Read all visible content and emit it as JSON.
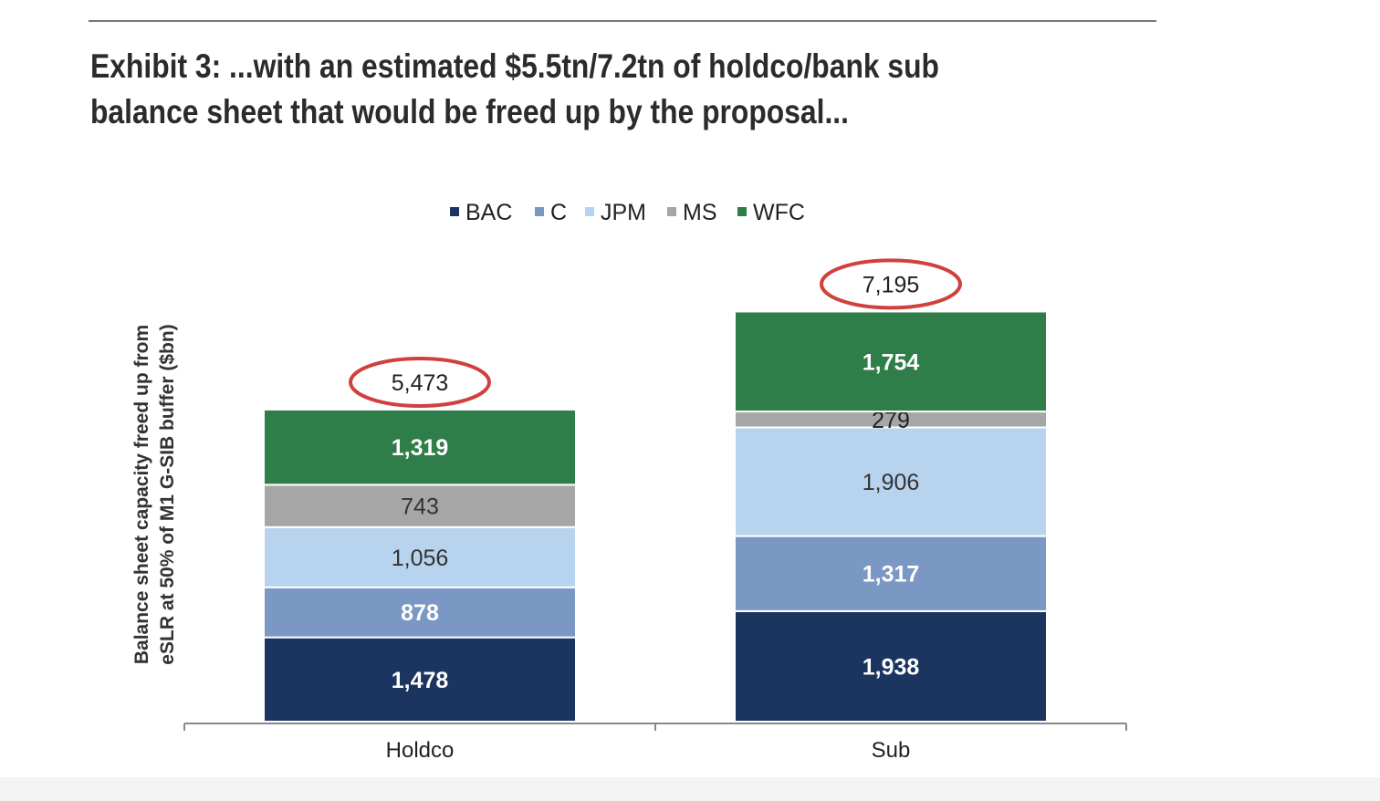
{
  "title": "Exhibit 3: ...with an estimated $5.5tn/7.2tn of holdco/bank sub balance sheet that would be freed up by the proposal...",
  "chart_data": {
    "type": "bar",
    "stacked": true,
    "title": "Exhibit 3: ...with an estimated $5.5tn/7.2tn of holdco/bank sub balance sheet that would be freed up by the proposal...",
    "xlabel": "",
    "ylabel": "Balance sheet capacity freed up from eSLR at 50% of M1 G-SIB buffer ($bn)",
    "ylim": [
      0,
      7500
    ],
    "grid": false,
    "legend_position": "top",
    "categories": [
      "Holdco",
      "Sub"
    ],
    "series": [
      {
        "name": "BAC",
        "values": [
          1478,
          1938
        ],
        "color": "#1b3560",
        "label_color": "#ffffff",
        "labels": [
          "1,478",
          "1,938"
        ]
      },
      {
        "name": "C",
        "values": [
          878,
          1317
        ],
        "color": "#7b97c4",
        "label_color": "#ffffff",
        "labels": [
          "878",
          "1,317"
        ]
      },
      {
        "name": "JPM",
        "values": [
          1056,
          1906
        ],
        "color": "#b8d3ee",
        "label_color": "#333333",
        "labels": [
          "1,056",
          "1,906"
        ]
      },
      {
        "name": "MS",
        "values": [
          743,
          279
        ],
        "color": "#a6a6a6",
        "label_color": "#333333",
        "labels": [
          "743",
          "279"
        ]
      },
      {
        "name": "WFC",
        "values": [
          1319,
          1754
        ],
        "color": "#2f7d49",
        "label_color": "#ffffff",
        "labels": [
          "1,319",
          "1,754"
        ]
      }
    ],
    "totals": [
      5473,
      7195
    ],
    "total_labels": [
      "5,473",
      "7,195"
    ],
    "highlight_color": "#d0413e"
  }
}
